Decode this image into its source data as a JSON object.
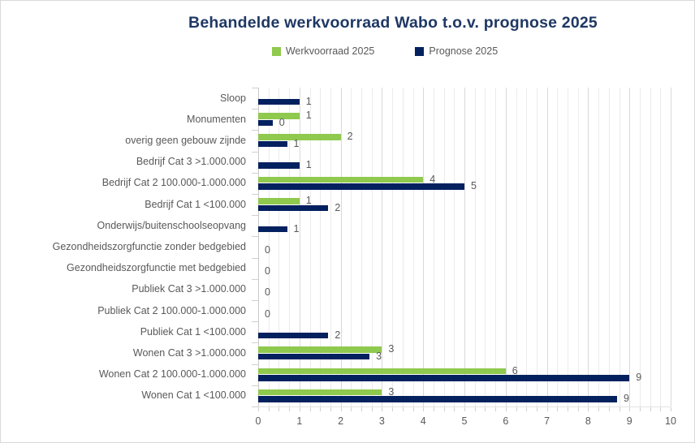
{
  "title": "Behandelde werkvoorraad Wabo t.o.v. prognose 2025",
  "title_color": "#1F3864",
  "legend": {
    "items": [
      {
        "label": "Werkvoorraad 2025",
        "color": "#8FC94E"
      },
      {
        "label": "Prognose 2025",
        "color": "#03205F"
      }
    ],
    "position": "top-center"
  },
  "chart_data": {
    "type": "bar",
    "orientation": "horizontal",
    "title": "Behandelde werkvoorraad Wabo t.o.v. prognose 2025",
    "xlabel": "",
    "ylabel": "",
    "xlim": [
      0,
      10
    ],
    "x_tick_labels": [
      "0",
      "1",
      "2",
      "3",
      "4",
      "5",
      "6",
      "7",
      "8",
      "9",
      "10"
    ],
    "minor_grid_step": 0.25,
    "grid": "vertical",
    "legend_position": "top",
    "categories": [
      "Sloop",
      "Monumenten",
      "overig geen gebouw zijnde",
      "Bedrijf Cat 3 >1.000.000",
      "Bedrijf Cat 2 100.000-1.000.000",
      "Bedrijf Cat 1 <100.000",
      "Onderwijs/buitenschoolseopvang",
      "Gezondheidszorgfunctie zonder bedgebied",
      "Gezondheidszorgfunctie met bedgebied",
      "Publiek Cat 3 >1.000.000",
      "Publiek Cat 2 100.000-1.000.000",
      "Publiek Cat 1 <100.000",
      "Wonen Cat 3 >1.000.000",
      "Wonen Cat 2 100.000-1.000.000",
      "Wonen Cat 1 <100.000"
    ],
    "series": [
      {
        "name": "Werkvoorraad 2025",
        "color": "#8FC94E",
        "values": [
          null,
          1,
          2,
          null,
          4,
          1,
          null,
          null,
          null,
          null,
          null,
          null,
          3,
          6,
          3
        ],
        "data_labels": [
          "",
          "1",
          "2",
          "",
          "4",
          "1",
          "",
          "",
          "",
          "",
          "",
          "",
          "3",
          "6",
          "3"
        ]
      },
      {
        "name": "Prognose 2025",
        "color": "#03205F",
        "values": [
          1,
          0.35,
          0.7,
          1,
          5,
          1.7,
          0.7,
          0,
          0,
          0,
          0,
          1.7,
          2.7,
          9,
          8.7
        ],
        "data_labels": [
          "1",
          "0",
          "1",
          "1",
          "5",
          "2",
          "1",
          "0",
          "0",
          "0",
          "0",
          "2",
          "3",
          "9",
          "9"
        ]
      }
    ]
  }
}
